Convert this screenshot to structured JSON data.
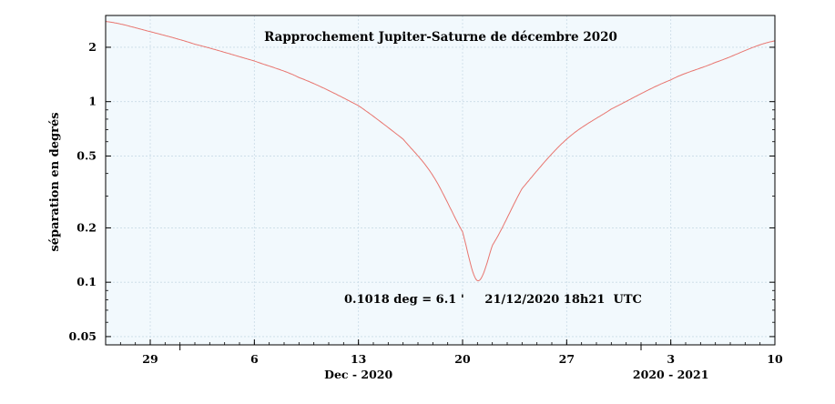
{
  "chart_data": {
    "type": "line",
    "title": "Rapprochement Jupiter-Saturne de décembre 2020",
    "ylabel": "séparation en degrés",
    "y_scale": "log",
    "ylim": [
      0.045,
      3.0
    ],
    "y_ticks": [
      {
        "value": 2,
        "label": "2"
      },
      {
        "value": 1,
        "label": "1"
      },
      {
        "value": 0.5,
        "label": "0.5"
      },
      {
        "value": 0.2,
        "label": "0.2"
      },
      {
        "value": 0.1,
        "label": "0.1"
      },
      {
        "value": 0.05,
        "label": "0.05"
      }
    ],
    "xlim": [
      "2020-11-26",
      "2021-01-10"
    ],
    "x_ticks": [
      {
        "date": "2020-11-29",
        "label": "29"
      },
      {
        "date": "2020-12-06",
        "label": "6"
      },
      {
        "date": "2020-12-13",
        "label": "13"
      },
      {
        "date": "2020-12-20",
        "label": "20"
      },
      {
        "date": "2020-12-27",
        "label": "27"
      },
      {
        "date": "2021-01-03",
        "label": "3"
      },
      {
        "date": "2021-01-10",
        "label": "10"
      }
    ],
    "x_group_labels": [
      {
        "label": "Dec - 2020",
        "date": "2020-12-13"
      },
      {
        "label": "2020 - 2021",
        "date": "2021-01-03"
      }
    ],
    "grid": true,
    "background_color": "#f2f9fd",
    "line_color": "#e8756f",
    "series": [
      {
        "x": [
          "2020-11-26",
          "2020-11-29",
          "2020-12-02",
          "2020-12-06",
          "2020-12-09",
          "2020-12-13",
          "2020-12-16",
          "2020-12-18",
          "2020-12-20",
          "2020-12-21",
          "2020-12-22",
          "2020-12-24",
          "2020-12-27",
          "2020-12-30",
          "2021-01-03",
          "2021-01-06",
          "2021-01-10"
        ],
        "y": [
          2.78,
          2.44,
          2.08,
          1.68,
          1.36,
          0.95,
          0.62,
          0.39,
          0.19,
          0.102,
          0.16,
          0.33,
          0.62,
          0.91,
          1.32,
          1.65,
          2.17
        ]
      }
    ],
    "annotation": {
      "text": "0.1018 deg = 6.1 '     21/12/2020 18h21  UTC",
      "date": "2020-12-21"
    }
  }
}
